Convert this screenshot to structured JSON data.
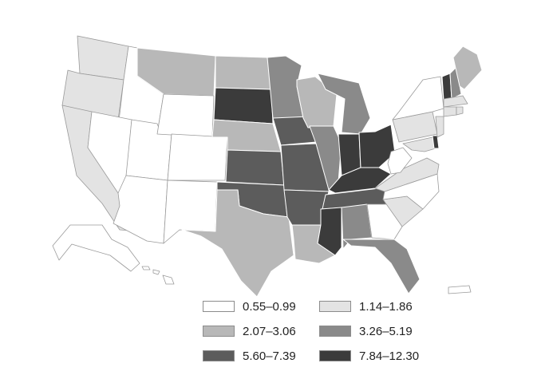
{
  "legend": {
    "bins": [
      {
        "label": "0.55–0.99",
        "color": "#ffffff"
      },
      {
        "label": "1.14–1.86",
        "color": "#e3e3e3"
      },
      {
        "label": "2.07–3.06",
        "color": "#b8b8b8"
      },
      {
        "label": "3.26–5.19",
        "color": "#8a8a8a"
      },
      {
        "label": "5.60–7.39",
        "color": "#5c5c5c"
      },
      {
        "label": "7.84–12.30",
        "color": "#3b3b3b"
      }
    ]
  },
  "states": {
    "WA": 1,
    "OR": 1,
    "CA": 1,
    "ID": 0,
    "NV": 0,
    "UT": 0,
    "AZ": 0,
    "MT": 2,
    "WY": 0,
    "CO": 0,
    "NM": 0,
    "ND": 2,
    "SD": 5,
    "NE": 2,
    "KS": 4,
    "OK": 4,
    "TX": 2,
    "MN": 3,
    "IA": 4,
    "MO": 4,
    "AR": 4,
    "LA": 2,
    "WI": 2,
    "IL": 3,
    "MI": 3,
    "IN": 5,
    "OH": 5,
    "KY": 5,
    "TN": 4,
    "MS": 5,
    "AL": 3,
    "GA": 0,
    "FL": 3,
    "SC": 1,
    "NC": 0,
    "VA": 1,
    "WV": 0,
    "PA": 1,
    "NY": 0,
    "VT": 5,
    "NH": 3,
    "ME": 2,
    "MA": 1,
    "CT": 1,
    "RI": 1,
    "NJ": 1,
    "DE": 5,
    "MD": 1,
    "AK": 0,
    "HI": 0,
    "PR": 0
  }
}
